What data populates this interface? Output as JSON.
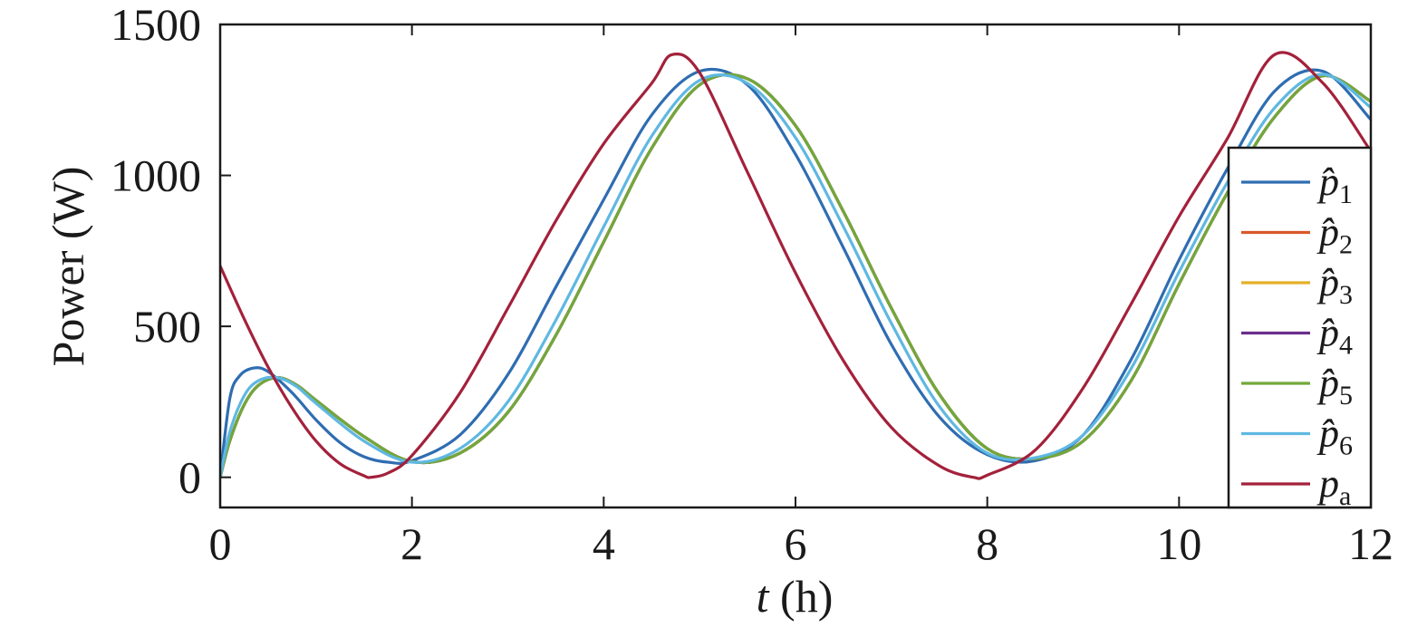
{
  "chart_data": {
    "type": "line",
    "title": "",
    "xlabel": {
      "var": "t",
      "unit": " (h)"
    },
    "ylabel": "Power (W)",
    "xlim": [
      0,
      12
    ],
    "ylim": [
      -100,
      1500
    ],
    "xticks": [
      0,
      2,
      4,
      6,
      8,
      10,
      12
    ],
    "yticks": [
      0,
      500,
      1000,
      1500
    ],
    "grid": false,
    "legend_position": "lower-right",
    "series": [
      {
        "name": "p̂1",
        "base": "p̂",
        "sub": "1",
        "color": "#2f6db1",
        "x": [
          0,
          0.1,
          0.2,
          0.35,
          0.5,
          0.75,
          1,
          1.25,
          1.5,
          1.75,
          2,
          2.5,
          3,
          3.5,
          4,
          4.5,
          5,
          5.5,
          6,
          6.5,
          7,
          7.5,
          8,
          8.5,
          9,
          9.5,
          10,
          10.5,
          11,
          11.5,
          12
        ],
        "y": [
          0,
          260,
          335,
          362,
          350,
          280,
          190,
          115,
          68,
          50,
          55,
          140,
          340,
          630,
          920,
          1200,
          1345,
          1300,
          1070,
          760,
          440,
          200,
          75,
          55,
          140,
          390,
          720,
          1020,
          1280,
          1345,
          1185
        ]
      },
      {
        "name": "p̂2",
        "base": "p̂",
        "sub": "2",
        "color": "#d9582a",
        "x": [
          0,
          0.1,
          0.25,
          0.4,
          0.6,
          0.8,
          1,
          1.5,
          2,
          2.5,
          3,
          3.5,
          4,
          4.5,
          5,
          5.5,
          6,
          6.5,
          7,
          7.5,
          8,
          8.5,
          9,
          9.5,
          10,
          10.5,
          11,
          11.5,
          12
        ],
        "y": [
          0,
          120,
          240,
          305,
          330,
          305,
          255,
          135,
          52,
          80,
          215,
          470,
          780,
          1090,
          1300,
          1320,
          1165,
          880,
          560,
          275,
          95,
          62,
          120,
          320,
          640,
          940,
          1195,
          1330,
          1245
        ]
      },
      {
        "name": "p̂3",
        "base": "p̂",
        "sub": "3",
        "color": "#e4b026",
        "x": [
          0,
          0.1,
          0.25,
          0.4,
          0.6,
          0.8,
          1,
          1.5,
          2,
          2.5,
          3,
          3.5,
          4,
          4.5,
          5,
          5.5,
          6,
          6.5,
          7,
          7.5,
          8,
          8.5,
          9,
          9.5,
          10,
          10.5,
          11,
          11.5,
          12
        ],
        "y": [
          0,
          120,
          240,
          305,
          330,
          305,
          255,
          135,
          52,
          80,
          215,
          470,
          780,
          1090,
          1300,
          1320,
          1165,
          880,
          560,
          275,
          95,
          62,
          120,
          320,
          640,
          940,
          1195,
          1330,
          1245
        ]
      },
      {
        "name": "p̂4",
        "base": "p̂",
        "sub": "4",
        "color": "#6b2e8c",
        "x": [
          0,
          0.1,
          0.25,
          0.4,
          0.6,
          0.8,
          1,
          1.5,
          2,
          2.5,
          3,
          3.5,
          4,
          4.5,
          5,
          5.5,
          6,
          6.5,
          7,
          7.5,
          8,
          8.5,
          9,
          9.5,
          10,
          10.5,
          11,
          11.5,
          12
        ],
        "y": [
          0,
          120,
          240,
          305,
          330,
          305,
          255,
          135,
          52,
          80,
          215,
          470,
          780,
          1090,
          1300,
          1320,
          1165,
          880,
          560,
          275,
          95,
          62,
          120,
          320,
          640,
          940,
          1195,
          1330,
          1245
        ]
      },
      {
        "name": "p̂5",
        "base": "p̂",
        "sub": "5",
        "color": "#72a83a",
        "x": [
          0,
          0.1,
          0.25,
          0.4,
          0.6,
          0.8,
          1,
          1.5,
          2,
          2.5,
          3,
          3.5,
          4,
          4.5,
          5,
          5.5,
          6,
          6.5,
          7,
          7.5,
          8,
          8.5,
          9,
          9.5,
          10,
          10.5,
          11,
          11.5,
          12
        ],
        "y": [
          0,
          120,
          240,
          305,
          330,
          305,
          255,
          135,
          52,
          80,
          215,
          470,
          780,
          1090,
          1300,
          1320,
          1165,
          880,
          560,
          275,
          95,
          62,
          120,
          320,
          640,
          940,
          1195,
          1330,
          1245
        ]
      },
      {
        "name": "p̂6",
        "base": "p̂",
        "sub": "6",
        "color": "#5fb8e1",
        "x": [
          0,
          0.1,
          0.25,
          0.4,
          0.6,
          0.8,
          1,
          1.5,
          2,
          2.5,
          3,
          3.5,
          4,
          4.5,
          5,
          5.5,
          6,
          6.5,
          7,
          7.5,
          8,
          8.5,
          9,
          9.5,
          10,
          10.5,
          11,
          11.5,
          12
        ],
        "y": [
          0,
          150,
          270,
          320,
          330,
          300,
          245,
          120,
          50,
          95,
          250,
          520,
          830,
          1130,
          1315,
          1305,
          1125,
          830,
          510,
          235,
          80,
          65,
          140,
          360,
          680,
          975,
          1225,
          1335,
          1225
        ]
      },
      {
        "name": "pa",
        "base": "p",
        "sub": "a",
        "color": "#a3213b",
        "x": [
          0,
          0.25,
          0.5,
          0.75,
          1,
          1.25,
          1.5,
          1.571,
          1.75,
          2,
          2.5,
          3,
          3.5,
          4,
          4.5,
          4.712,
          5,
          5.5,
          6,
          6.5,
          7,
          7.5,
          7.854,
          8,
          8.5,
          9,
          9.5,
          10,
          10.5,
          10.996,
          11.5,
          12
        ],
        "y": [
          700,
          525,
          365,
          230,
          120,
          45,
          5,
          0,
          14,
          72,
          279,
          560,
          849,
          1105,
          1305,
          1400,
          1340,
          1010,
          677,
          386,
          165,
          38,
          0,
          7,
          90,
          296,
          574,
          864,
          1120,
          1400,
          1306,
          1080
        ]
      }
    ]
  }
}
